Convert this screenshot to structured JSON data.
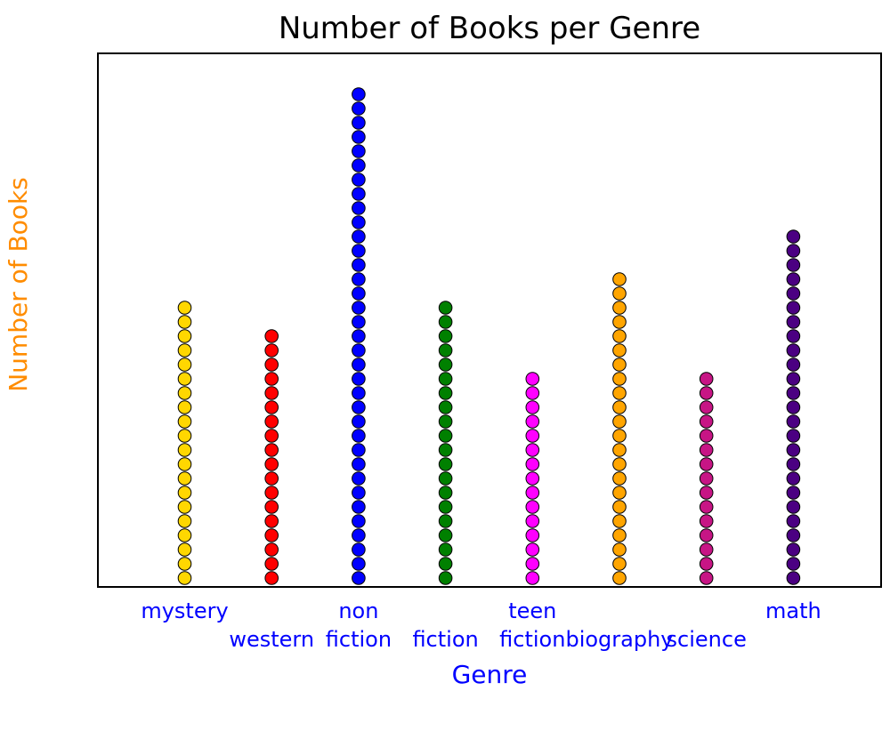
{
  "chart_data": {
    "type": "scatter",
    "title": "Number of Books per Genre",
    "xlabel": "Genre",
    "ylabel": "Number of Books",
    "categories": [
      "mystery",
      "western",
      "non fiction",
      "fiction",
      "teen fiction",
      "biography",
      "science",
      "math"
    ],
    "tick_labels": [
      {
        "lines": [
          "mystery"
        ],
        "row": 0
      },
      {
        "lines": [
          "western"
        ],
        "row": 1
      },
      {
        "lines": [
          "non",
          "fiction"
        ],
        "row": 0
      },
      {
        "lines": [
          "fiction"
        ],
        "row": 1
      },
      {
        "lines": [
          "teen",
          "fiction"
        ],
        "row": 0
      },
      {
        "lines": [
          "biography"
        ],
        "row": 1
      },
      {
        "lines": [
          "science"
        ],
        "row": 1
      },
      {
        "lines": [
          "math"
        ],
        "row": 0
      }
    ],
    "values": [
      20,
      18,
      35,
      20,
      15,
      22,
      15,
      25
    ],
    "colors": [
      "#FFD700",
      "#FF0000",
      "#0000FF",
      "#008000",
      "#FF00FF",
      "#FFA500",
      "#C71585",
      "#4B0082"
    ],
    "ylim": [
      0,
      37.5
    ],
    "grid": false,
    "yticks": false,
    "label_color": "#0000FF",
    "ylabel_color": "#FF8C00",
    "marker_edge_color": "#000000"
  }
}
